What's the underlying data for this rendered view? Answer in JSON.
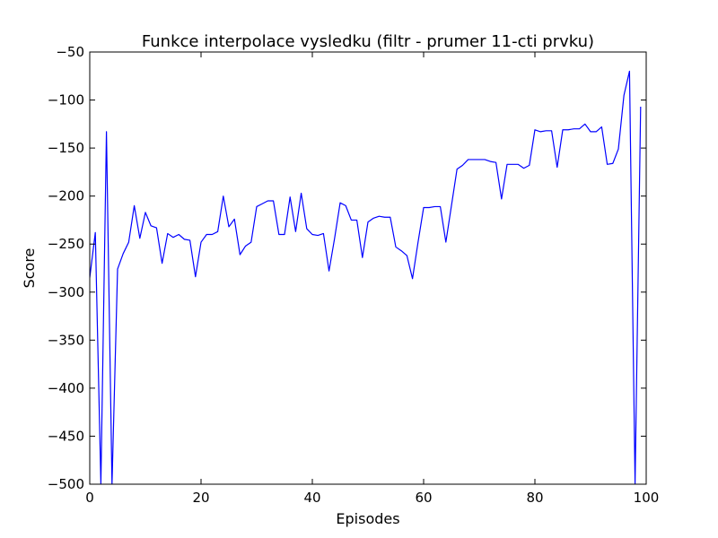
{
  "chart_data": {
    "type": "line",
    "title": "Funkce interpolace vysledku  (filtr - prumer 11-cti prvku)",
    "xlabel": "Episodes",
    "ylabel": "Score",
    "xlim": [
      0,
      100
    ],
    "ylim": [
      -500,
      -50
    ],
    "xticks": [
      0,
      20,
      40,
      60,
      80,
      100
    ],
    "xtick_labels": [
      "0",
      "20",
      "40",
      "60",
      "80",
      "100"
    ],
    "yticks": [
      -500,
      -450,
      -400,
      -350,
      -300,
      -250,
      -200,
      -150,
      -100,
      -50
    ],
    "ytick_labels": [
      "−500",
      "−450",
      "−400",
      "−350",
      "−300",
      "−250",
      "−200",
      "−150",
      "−100",
      "−50"
    ],
    "grid": false,
    "series": [
      {
        "color": "#0000ff",
        "x": [
          0,
          1,
          2,
          3,
          4,
          5,
          6,
          7,
          8,
          9,
          10,
          11,
          12,
          13,
          14,
          15,
          16,
          17,
          18,
          19,
          20,
          21,
          22,
          23,
          24,
          25,
          26,
          27,
          28,
          29,
          30,
          31,
          32,
          33,
          34,
          35,
          36,
          37,
          38,
          39,
          40,
          41,
          42,
          43,
          44,
          45,
          46,
          47,
          48,
          49,
          50,
          51,
          52,
          53,
          54,
          55,
          56,
          57,
          58,
          59,
          60,
          61,
          62,
          63,
          64,
          65,
          66,
          67,
          68,
          69,
          70,
          71,
          72,
          73,
          74,
          75,
          76,
          77,
          78,
          79,
          80,
          81,
          82,
          83,
          84,
          85,
          86,
          87,
          88,
          89,
          90,
          91,
          92,
          93,
          94,
          95,
          96,
          97,
          98,
          99
        ],
        "values": [
          -285,
          -238,
          -500,
          -133,
          -500,
          -276,
          -260,
          -248,
          -210,
          -244,
          -217,
          -231,
          -233,
          -270,
          -239,
          -243,
          -240,
          -245,
          -246,
          -284,
          -248,
          -240,
          -240,
          -237,
          -200,
          -232,
          -224,
          -261,
          -252,
          -248,
          -211,
          -208,
          -205,
          -205,
          -240,
          -240,
          -201,
          -237,
          -197,
          -234,
          -240,
          -241,
          -239,
          -278,
          -244,
          -207,
          -210,
          -225,
          -225,
          -264,
          -227,
          -223,
          -221,
          -222,
          -222,
          -253,
          -257,
          -262,
          -286,
          -248,
          -212,
          -212,
          -211,
          -211,
          -248,
          -210,
          -172,
          -168,
          -162,
          -162,
          -162,
          -162,
          -164,
          -165,
          -203,
          -167,
          -167,
          -167,
          -171,
          -168,
          -131,
          -133,
          -132,
          -132,
          -170,
          -131,
          -131,
          -130,
          -130,
          -125,
          -133,
          -133,
          -128,
          -167,
          -166,
          -151,
          -95,
          -70,
          -500,
          -107
        ]
      }
    ]
  }
}
